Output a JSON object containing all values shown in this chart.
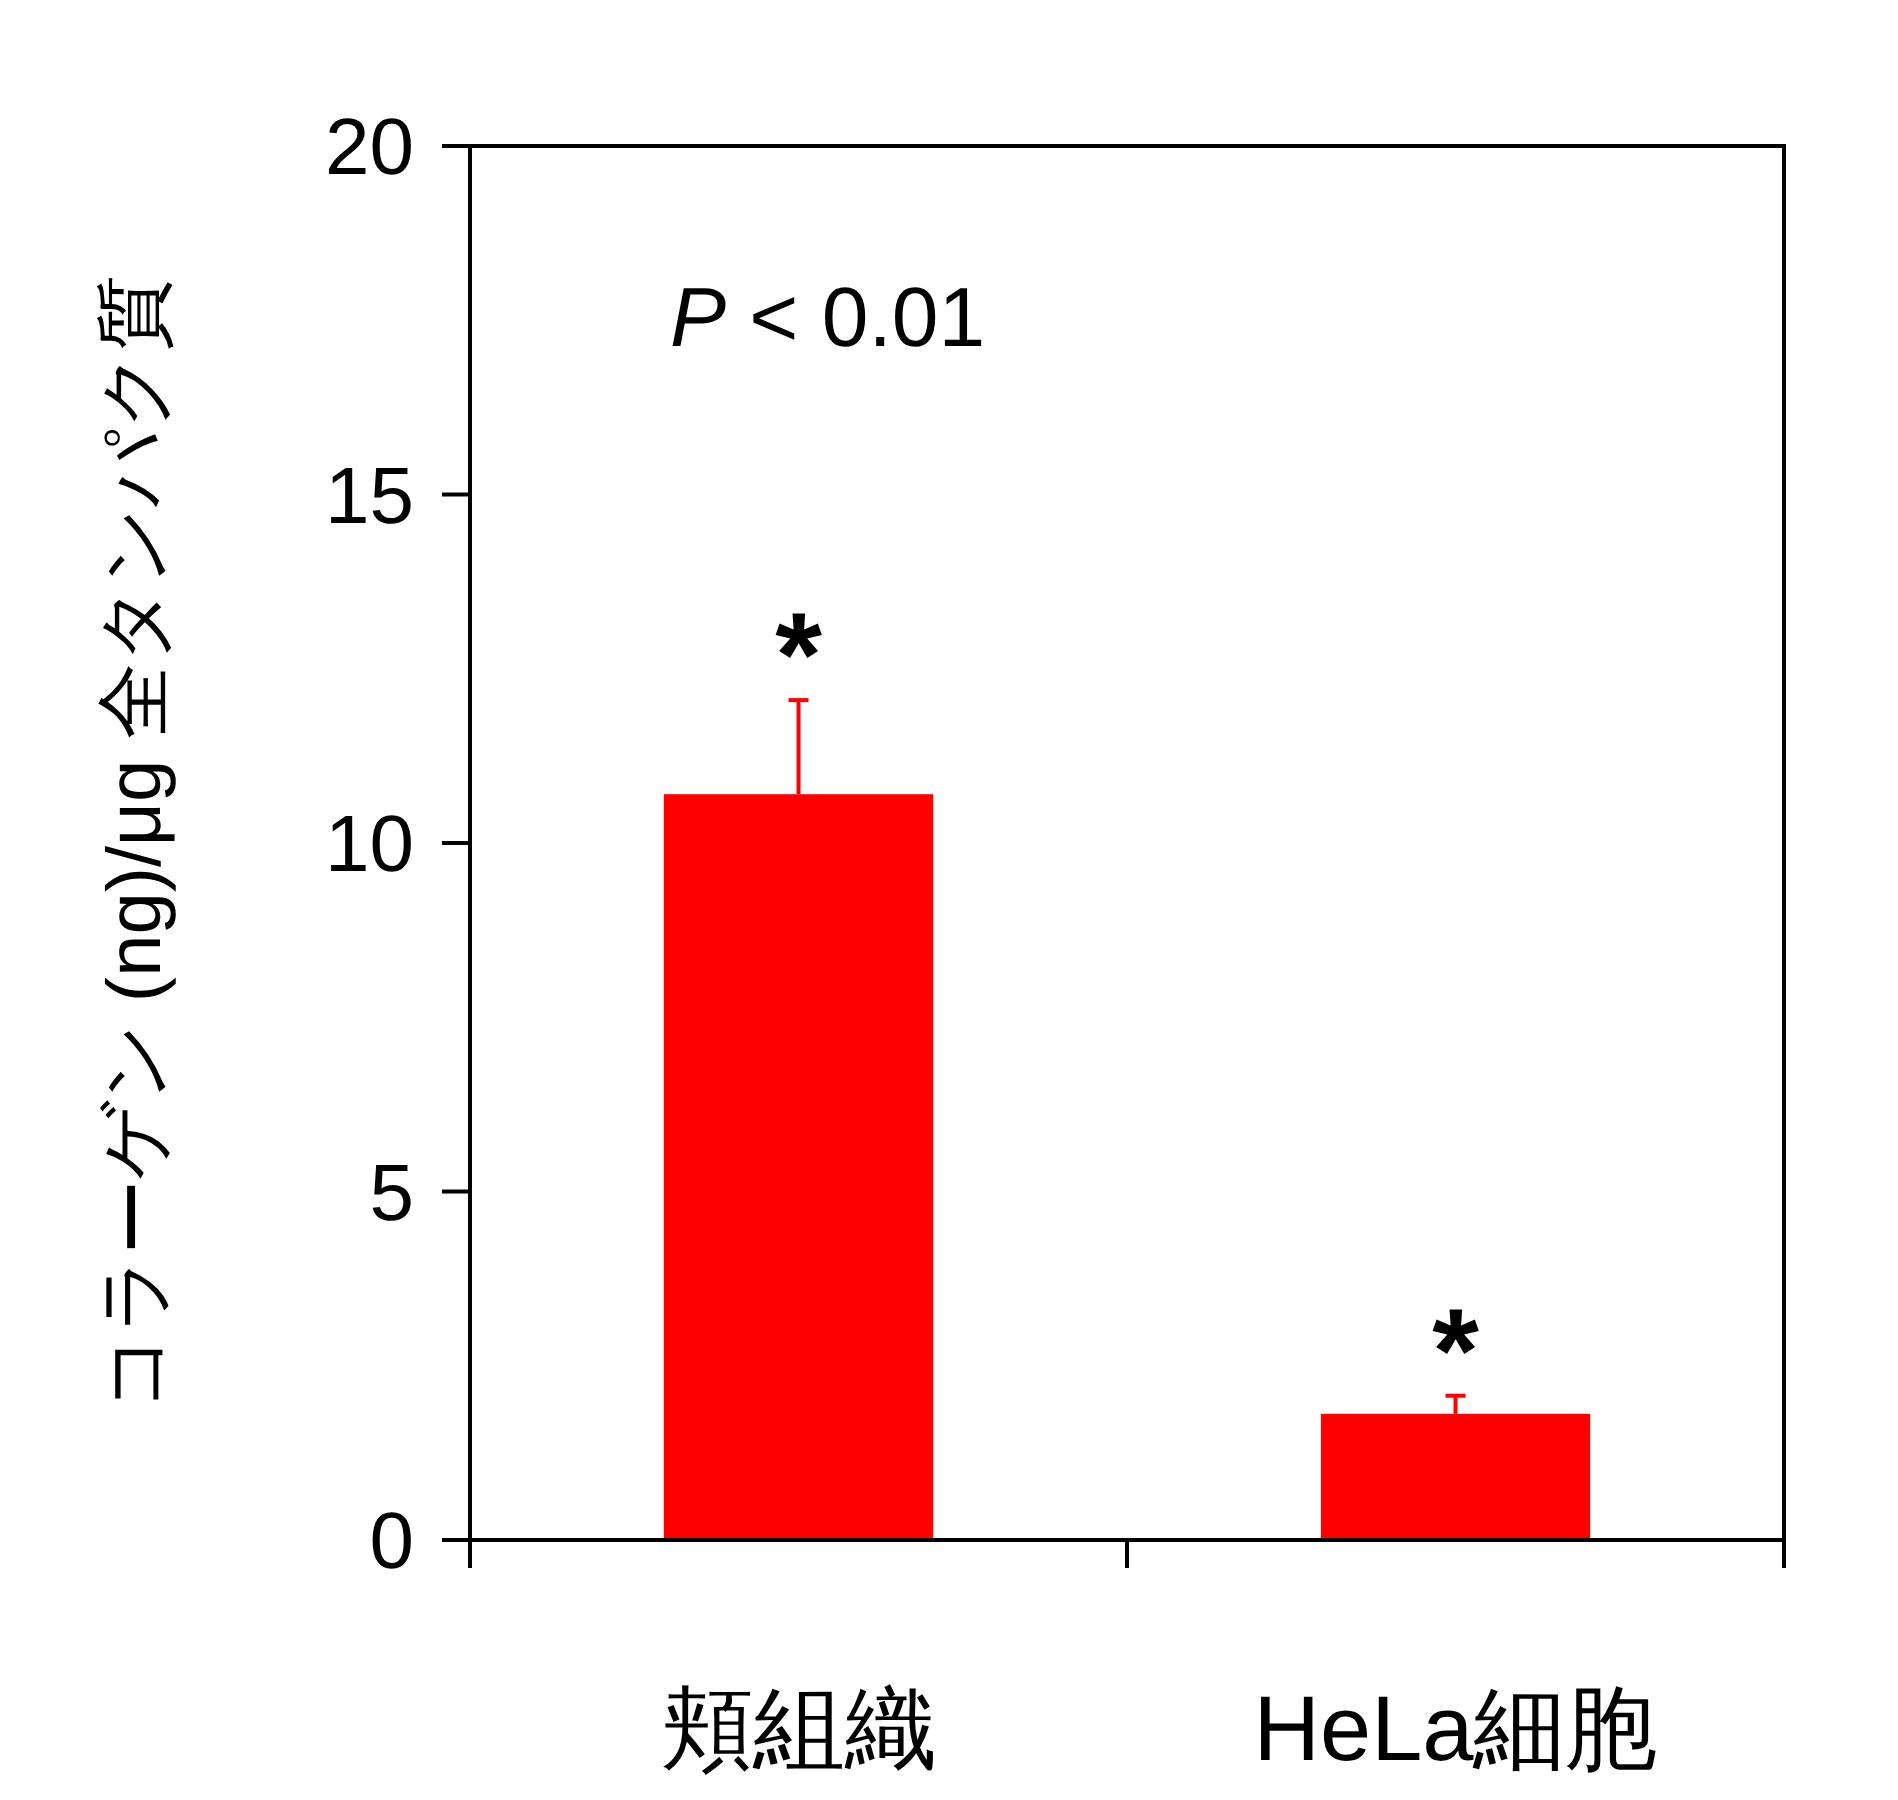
{
  "chart_data": {
    "type": "bar",
    "categories": [
      "頬組織",
      "HeLa細胞"
    ],
    "series": [
      {
        "color": "#ff0000",
        "values": [
          10.7,
          1.81
        ],
        "errors": [
          1.35,
          0.26
        ]
      }
    ],
    "ylabel": "コラーゲン (ng)/μg 全タンパク質",
    "ylim": [
      0,
      20
    ],
    "yticks": [
      0,
      5,
      10,
      15,
      20
    ],
    "grid": false,
    "annotations": [
      "P < 0.01",
      {
        "text": "*",
        "x": "頬組織",
        "y": 12.05
      },
      {
        "text": "*",
        "x": "HeLa細胞",
        "y": 2.07
      }
    ]
  }
}
